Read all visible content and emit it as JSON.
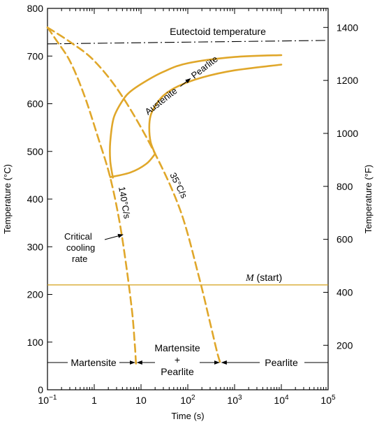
{
  "chart_data": {
    "type": "line",
    "xscale": "log",
    "xlabel": "Time (s)",
    "ylabel_left": "Temperature (°C)",
    "ylabel_right": "Temperature (°F)",
    "xlim": [
      0.1,
      100000
    ],
    "ylim": [
      0,
      800
    ],
    "ylim_right": [
      32,
      1472
    ],
    "x_ticks": [
      {
        "value": 0.1,
        "label": "10",
        "exp": "−1"
      },
      {
        "value": 1,
        "label": "1",
        "exp": ""
      },
      {
        "value": 10,
        "label": "10",
        "exp": ""
      },
      {
        "value": 100,
        "label": "10",
        "exp": "2"
      },
      {
        "value": 1000,
        "label": "10",
        "exp": "3"
      },
      {
        "value": 10000,
        "label": "10",
        "exp": "4"
      },
      {
        "value": 100000,
        "label": "10",
        "exp": "5"
      }
    ],
    "y_ticks": [
      "0",
      "100",
      "200",
      "300",
      "400",
      "500",
      "600",
      "700",
      "800"
    ],
    "y_ticks_right": [
      "200",
      "400",
      "600",
      "800",
      "1000",
      "1200",
      "1400"
    ],
    "grid": false,
    "colors": {
      "curves": "#E0A72A",
      "ms_line": "#D4A019",
      "ink": "#000000"
    },
    "eutectoid": {
      "label": "Eutectoid temperature",
      "y": 727
    },
    "ms_start": {
      "label_italic": "M",
      "label_rest": " (start)",
      "y": 220
    },
    "series": [
      {
        "role": "transformation-start",
        "style": "solid",
        "x": [
          10000,
          1000,
          100,
          30,
          12,
          6,
          4,
          2.6,
          2.2,
          2.2,
          2.5
        ],
        "y": [
          702,
          698,
          685,
          667,
          646,
          626,
          606,
          570,
          520,
          480,
          445
        ]
      },
      {
        "role": "transformation-end",
        "style": "solid",
        "x": [
          10000,
          1000,
          200,
          60,
          30,
          20,
          16,
          15,
          16,
          20
        ],
        "y": [
          682,
          670,
          655,
          636,
          617,
          595,
          575,
          550,
          520,
          495
        ]
      },
      {
        "role": "isothermal-stop",
        "style": "solid",
        "x": [
          2.2,
          6,
          13,
          20
        ],
        "y": [
          446,
          456,
          474,
          495
        ]
      },
      {
        "name": "140°C/s",
        "style": "dashed",
        "x": [
          0.1,
          0.15,
          0.3,
          0.6,
          1.2,
          2.2,
          3.5,
          5,
          6.5,
          7.3,
          7.6,
          7.8
        ],
        "y": [
          760,
          735,
          690,
          620,
          530,
          445,
          350,
          250,
          160,
          100,
          75,
          55
        ]
      },
      {
        "name": "35°C/s",
        "style": "dashed",
        "x": [
          0.1,
          0.3,
          1,
          4,
          20,
          70,
          170,
          300,
          420,
          500
        ],
        "y": [
          760,
          730,
          690,
          615,
          495,
          375,
          240,
          140,
          80,
          55
        ]
      }
    ],
    "annotations": {
      "austenite_pearlite": "Austenite → Pearlite",
      "austenite": "Austenite",
      "pearlite_region": "Pearlite",
      "rate_140": "140°C/s",
      "rate_35": "35°C/s",
      "critical": [
        "Critical",
        "cooling",
        "rate"
      ],
      "bottom_martensite": "Martensite",
      "bottom_mp": [
        "Martensite",
        "+",
        "Pearlite"
      ],
      "bottom_pearlite": "Pearlite"
    }
  }
}
